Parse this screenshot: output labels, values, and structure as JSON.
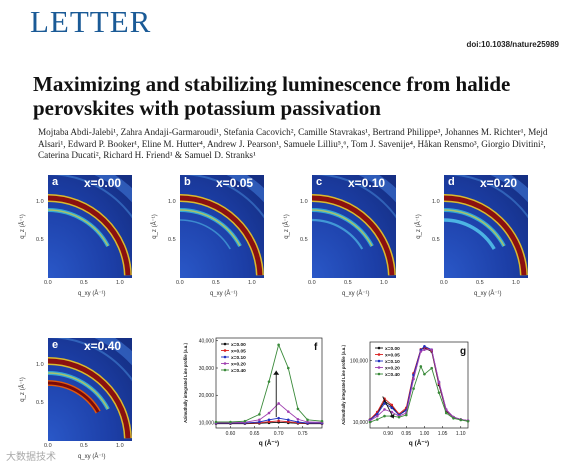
{
  "header": {
    "section": "LETTER",
    "doi": "doi:10.1038/nature25989"
  },
  "article": {
    "title": "Maximizing and stabilizing luminescence from halide perovskites with potassium passivation",
    "authors": "Mojtaba Abdi-Jalebi¹, Zahra Andaji-Garmaroudi¹, Stefania Cacovich², Camille Stavrakas¹, Bertrand Philippe³, Johannes M. Richter¹, Mejd Alsari¹, Edward P. Booker¹, Eline M. Hutter⁴, Andrew J. Pearson¹, Samuele Lilliu⁵,⁶, Tom J. Savenije⁴, Håkan Rensmo³, Giorgio Divitini², Caterina Ducati², Richard H. Friend¹ & Samuel D. Stranks¹"
  },
  "giwaxs_panels": [
    {
      "label": "a",
      "caption": "x=0.00",
      "x_ticks": [
        "0.0",
        "0.5",
        "1.0"
      ],
      "y_ticks": [
        "1.0",
        "0.5"
      ],
      "xlabel": "q_xy (Å⁻¹)",
      "ylabel": "q_z (Å⁻¹)",
      "ring_intensity": 0.0
    },
    {
      "label": "b",
      "caption": "x=0.05",
      "x_ticks": [
        "0.0",
        "0.5",
        "1.0"
      ],
      "y_ticks": [
        "1.0",
        "0.5"
      ],
      "xlabel": "q_xy (Å⁻¹)",
      "ylabel": "q_z (Å⁻¹)",
      "ring_intensity": 0.05
    },
    {
      "label": "c",
      "caption": "x=0.10",
      "x_ticks": [
        "0.0",
        "0.5",
        "1.0"
      ],
      "y_ticks": [
        "1.0",
        "0.5"
      ],
      "xlabel": "q_xy (Å⁻¹)",
      "ylabel": "q_z (Å⁻¹)",
      "ring_intensity": 0.1
    },
    {
      "label": "d",
      "caption": "x=0.20",
      "x_ticks": [
        "0.0",
        "0.5",
        "1.0"
      ],
      "y_ticks": [
        "1.0",
        "0.5"
      ],
      "xlabel": "q_xy (Å⁻¹)",
      "ylabel": "q_z (Å⁻¹)",
      "ring_intensity": 0.2
    },
    {
      "label": "e",
      "caption": "x=0.40",
      "x_ticks": [
        "0.0",
        "0.5",
        "1.0"
      ],
      "y_ticks": [
        "1.0",
        "0.5"
      ],
      "xlabel": "q_xy (Å⁻¹)",
      "ylabel": "q_z (Å⁻¹)",
      "ring_intensity": 0.4
    }
  ],
  "chart_data": [
    {
      "type": "line",
      "panel": "f",
      "xlabel": "q (Å⁻¹)",
      "ylabel": "Azimuthally integrated Line profile (a.u.)",
      "x_ticks": [
        "0.60",
        "0.65",
        "0.70",
        "0.75"
      ],
      "y_ticks": [
        "40,000",
        "30,000",
        "20,000",
        "10,000"
      ],
      "xlim": [
        0.57,
        0.79
      ],
      "ylim": [
        8000,
        41000
      ],
      "series": [
        {
          "name": "x=0.00",
          "color": "#111111",
          "x": [
            0.57,
            0.6,
            0.63,
            0.66,
            0.68,
            0.7,
            0.72,
            0.74,
            0.76,
            0.79
          ],
          "y": [
            9600,
            9600,
            9600,
            9700,
            9900,
            10100,
            9900,
            9700,
            9600,
            9600
          ]
        },
        {
          "name": "x=0.05",
          "color": "#d92020",
          "x": [
            0.57,
            0.6,
            0.63,
            0.66,
            0.68,
            0.7,
            0.72,
            0.74,
            0.76,
            0.79
          ],
          "y": [
            9700,
            9700,
            9700,
            9900,
            10300,
            10600,
            10300,
            9900,
            9700,
            9700
          ]
        },
        {
          "name": "x=0.10",
          "color": "#2030c0",
          "x": [
            0.57,
            0.6,
            0.63,
            0.66,
            0.68,
            0.7,
            0.72,
            0.74,
            0.76,
            0.79
          ],
          "y": [
            9800,
            9800,
            9800,
            10200,
            11000,
            11600,
            11000,
            10200,
            9800,
            9800
          ]
        },
        {
          "name": "x=0.20",
          "color": "#a040b0",
          "x": [
            0.57,
            0.6,
            0.63,
            0.66,
            0.68,
            0.7,
            0.72,
            0.74,
            0.76,
            0.79
          ],
          "y": [
            10000,
            10000,
            10100,
            11000,
            13500,
            17000,
            14000,
            11200,
            10200,
            10100
          ]
        },
        {
          "name": "x=0.40",
          "color": "#3a8a3a",
          "x": [
            0.57,
            0.6,
            0.63,
            0.66,
            0.68,
            0.7,
            0.72,
            0.74,
            0.76,
            0.79
          ],
          "y": [
            10200,
            10200,
            10500,
            13000,
            25000,
            38500,
            30000,
            15000,
            11000,
            10500
          ]
        }
      ],
      "annotations": [
        "arrow-up"
      ]
    },
    {
      "type": "line",
      "panel": "g",
      "xlabel": "q (Å⁻¹)",
      "ylabel": "Azimuthally integrated Line profile (a.u.)",
      "x_ticks": [
        "0.90",
        "0.95",
        "1.00",
        "1.05",
        "1.10"
      ],
      "y_ticks": [
        "100,000",
        "10,000"
      ],
      "y_scale": "log",
      "xlim": [
        0.85,
        1.12
      ],
      "ylim": [
        8000,
        200000
      ],
      "series": [
        {
          "name": "x=0.00",
          "color": "#111111",
          "x": [
            0.85,
            0.87,
            0.89,
            0.91,
            0.93,
            0.95,
            0.97,
            0.99,
            1.0,
            1.02,
            1.04,
            1.06,
            1.08,
            1.1,
            1.12
          ],
          "y": [
            11000,
            14000,
            22000,
            18000,
            13000,
            16000,
            60000,
            150000,
            160000,
            140000,
            40000,
            15000,
            12000,
            11000,
            10500
          ]
        },
        {
          "name": "x=0.05",
          "color": "#d92020",
          "x": [
            0.85,
            0.87,
            0.89,
            0.91,
            0.93,
            0.95,
            0.97,
            0.99,
            1.0,
            1.02,
            1.04,
            1.06,
            1.08,
            1.1,
            1.12
          ],
          "y": [
            11000,
            14500,
            24000,
            19000,
            13500,
            17000,
            62000,
            152000,
            165000,
            145000,
            42000,
            15500,
            12000,
            11000,
            10500
          ]
        },
        {
          "name": "x=0.10",
          "color": "#2030c0",
          "x": [
            0.85,
            0.87,
            0.89,
            0.91,
            0.93,
            0.95,
            0.97,
            0.99,
            1.0,
            1.02,
            1.04,
            1.06,
            1.08,
            1.1,
            1.12
          ],
          "y": [
            10800,
            13500,
            20000,
            17000,
            13000,
            15500,
            58000,
            148000,
            170000,
            150000,
            44000,
            15800,
            12000,
            11000,
            10500
          ]
        },
        {
          "name": "x=0.20",
          "color": "#a040b0",
          "x": [
            0.85,
            0.87,
            0.89,
            0.91,
            0.93,
            0.95,
            0.97,
            0.99,
            1.0,
            1.02,
            1.04,
            1.06,
            1.08,
            1.1,
            1.12
          ],
          "y": [
            10500,
            12500,
            16000,
            14500,
            12500,
            14000,
            50000,
            140000,
            150000,
            150000,
            45000,
            16000,
            12000,
            11000,
            10500
          ]
        },
        {
          "name": "x=0.40",
          "color": "#3a8a3a",
          "x": [
            0.85,
            0.87,
            0.89,
            0.91,
            0.93,
            0.95,
            0.97,
            0.99,
            1.0,
            1.02,
            1.04,
            1.06,
            1.08,
            1.1,
            1.12
          ],
          "y": [
            10000,
            11000,
            12500,
            12500,
            12000,
            13000,
            35000,
            80000,
            60000,
            75000,
            30000,
            14000,
            11500,
            10800,
            10300
          ]
        }
      ],
      "annotations": [
        "arrow-down"
      ]
    }
  ],
  "watermark": "大数据技术"
}
